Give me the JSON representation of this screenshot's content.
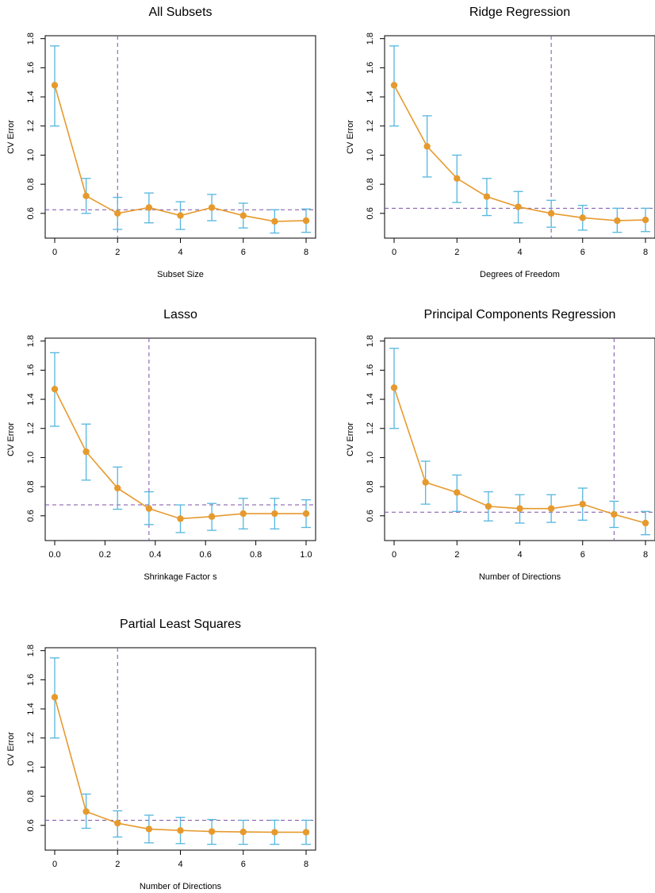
{
  "style": {
    "line_color": "#E69A2E",
    "errorbar_color": "#55B6DE",
    "reference_line_color": "#7E4FA8",
    "frame_color": "#000000"
  },
  "chart_data": [
    {
      "type": "line",
      "title": "All Subsets",
      "xlabel": "Subset Size",
      "ylabel": "CV Error",
      "xlim": [
        0,
        8
      ],
      "ylim": [
        0.43,
        1.82
      ],
      "xticks": [
        "0",
        "2",
        "4",
        "6",
        "8"
      ],
      "yticks": [
        "0.6",
        "0.8",
        "1.0",
        "1.2",
        "1.4",
        "1.6",
        "1.8"
      ],
      "x": [
        0,
        1,
        2,
        3,
        4,
        5,
        6,
        7,
        8
      ],
      "y": [
        1.48,
        0.72,
        0.6,
        0.64,
        0.585,
        0.64,
        0.585,
        0.545,
        0.55
      ],
      "error_upper": [
        1.75,
        0.84,
        0.71,
        0.74,
        0.68,
        0.73,
        0.67,
        0.625,
        0.63
      ],
      "error_lower": [
        1.2,
        0.6,
        0.49,
        0.535,
        0.49,
        0.55,
        0.5,
        0.465,
        0.47
      ],
      "ref_h": 0.625,
      "ref_v": 2
    },
    {
      "type": "line",
      "title": "Ridge Regression",
      "xlabel": "Degrees of Freedom",
      "ylabel": "CV Error",
      "xlim": [
        0,
        8
      ],
      "ylim": [
        0.43,
        1.82
      ],
      "xticks": [
        "0",
        "2",
        "4",
        "6",
        "8"
      ],
      "yticks": [
        "0.6",
        "0.8",
        "1.0",
        "1.2",
        "1.4",
        "1.6",
        "1.8"
      ],
      "x": [
        0,
        1.05,
        2,
        2.95,
        3.95,
        5,
        6,
        7.1,
        8
      ],
      "y": [
        1.48,
        1.06,
        0.84,
        0.715,
        0.645,
        0.6,
        0.57,
        0.55,
        0.555
      ],
      "error_upper": [
        1.75,
        1.27,
        1.0,
        0.84,
        0.75,
        0.69,
        0.655,
        0.635,
        0.635
      ],
      "error_lower": [
        1.2,
        0.85,
        0.675,
        0.585,
        0.535,
        0.505,
        0.485,
        0.47,
        0.475
      ],
      "ref_h": 0.635,
      "ref_v": 5
    },
    {
      "type": "line",
      "title": "Lasso",
      "xlabel": "Shrinkage Factor s",
      "ylabel": "CV Error",
      "xlim": [
        0,
        1
      ],
      "ylim": [
        0.43,
        1.82
      ],
      "xticks": [
        "0.0",
        "0.2",
        "0.4",
        "0.6",
        "0.8",
        "1.0"
      ],
      "yticks": [
        "0.6",
        "0.8",
        "1.0",
        "1.2",
        "1.4",
        "1.6",
        "1.8"
      ],
      "x": [
        0,
        0.125,
        0.25,
        0.375,
        0.5,
        0.625,
        0.75,
        0.875,
        1.0
      ],
      "y": [
        1.47,
        1.04,
        0.79,
        0.65,
        0.58,
        0.595,
        0.615,
        0.615,
        0.615
      ],
      "error_upper": [
        1.72,
        1.23,
        0.935,
        0.765,
        0.675,
        0.685,
        0.72,
        0.72,
        0.71
      ],
      "error_lower": [
        1.215,
        0.845,
        0.645,
        0.54,
        0.485,
        0.5,
        0.51,
        0.51,
        0.52
      ],
      "ref_h": 0.675,
      "ref_v": 0.375
    },
    {
      "type": "line",
      "title": "Principal Components Regression",
      "xlabel": "Number of Directions",
      "ylabel": "CV Error",
      "xlim": [
        0,
        8
      ],
      "ylim": [
        0.43,
        1.82
      ],
      "xticks": [
        "0",
        "2",
        "4",
        "6",
        "8"
      ],
      "yticks": [
        "0.6",
        "0.8",
        "1.0",
        "1.2",
        "1.4",
        "1.6",
        "1.8"
      ],
      "x": [
        0,
        1,
        2,
        3,
        4,
        5,
        6,
        7,
        8
      ],
      "y": [
        1.48,
        0.83,
        0.76,
        0.665,
        0.65,
        0.65,
        0.68,
        0.61,
        0.55
      ],
      "error_upper": [
        1.75,
        0.975,
        0.88,
        0.765,
        0.745,
        0.745,
        0.79,
        0.7,
        0.63
      ],
      "error_lower": [
        1.2,
        0.68,
        0.63,
        0.565,
        0.55,
        0.555,
        0.57,
        0.52,
        0.47
      ],
      "ref_h": 0.625,
      "ref_v": 7
    },
    {
      "type": "line",
      "title": "Partial Least Squares",
      "xlabel": "Number of  Directions",
      "ylabel": "CV Error",
      "xlim": [
        0,
        8
      ],
      "ylim": [
        0.43,
        1.82
      ],
      "xticks": [
        "0",
        "2",
        "4",
        "6",
        "8"
      ],
      "yticks": [
        "0.6",
        "0.8",
        "1.0",
        "1.2",
        "1.4",
        "1.6",
        "1.8"
      ],
      "x": [
        0,
        1,
        2,
        3,
        4,
        5,
        6,
        7,
        8
      ],
      "y": [
        1.48,
        0.695,
        0.615,
        0.575,
        0.565,
        0.558,
        0.555,
        0.553,
        0.553
      ],
      "error_upper": [
        1.75,
        0.815,
        0.7,
        0.67,
        0.655,
        0.64,
        0.635,
        0.635,
        0.635
      ],
      "error_lower": [
        1.2,
        0.58,
        0.52,
        0.48,
        0.475,
        0.47,
        0.47,
        0.47,
        0.47
      ],
      "ref_h": 0.635,
      "ref_v": 2
    }
  ]
}
